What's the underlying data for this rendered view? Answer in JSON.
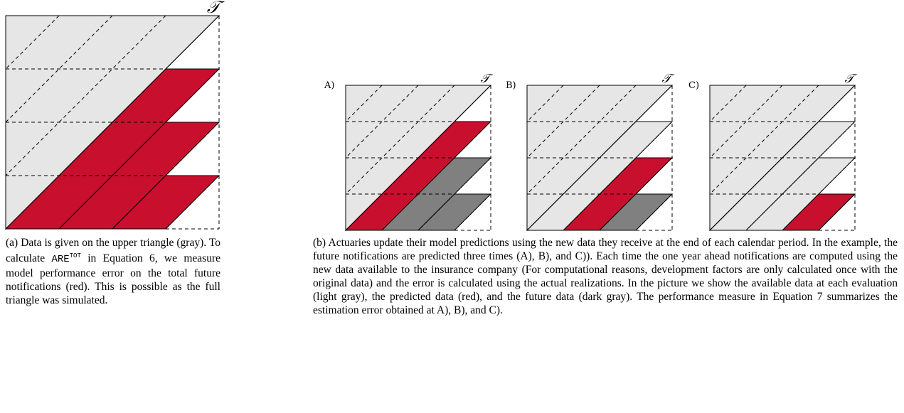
{
  "figure_a": {
    "corner_label": "𝒯",
    "caption": {
      "before": "(a) Data is given on the upper triangle (gray). To calculate ",
      "code": "ARE",
      "sup": "TOT",
      "after": " in Equation 6, we measure model performance error on the total future notifications (red). This is possible as the full triangle was simulated."
    }
  },
  "figure_b": {
    "panels": [
      {
        "label": "A)",
        "corner_label": "𝒯"
      },
      {
        "label": "B)",
        "corner_label": "𝒯"
      },
      {
        "label": "C)",
        "corner_label": "𝒯"
      }
    ],
    "caption": "(b) Actuaries update their model predictions using the new data they receive at the end of each calendar period. In the example, the future notifications are predicted three times (A), B), and C)). Each time the one year ahead notifications are computed using the new data available to the insurance company (For computational reasons, development factors are only calculated once with the original data) and the error is calculated using the actual realizations. In the picture we show the available data at each evaluation (light gray), the predicted data (red), and the future data (dark gray). The performance measure in Equation 7 summarizes the estimation error obtained at A), B), and C)."
  }
}
